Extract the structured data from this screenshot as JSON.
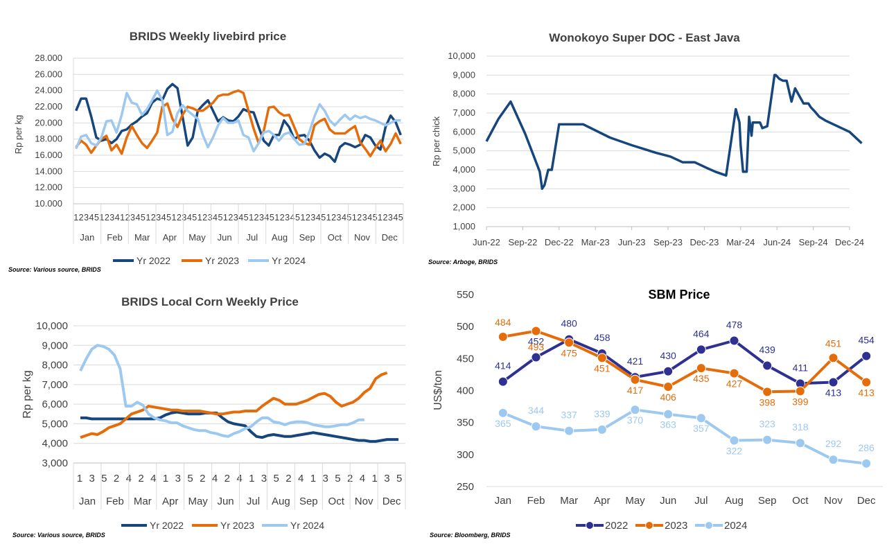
{
  "colors": {
    "y2022": "#17467d",
    "y2023": "#e46c0a",
    "y2024": "#9dc8ef",
    "grid": "#d9d9d9",
    "sbm2022": "#2e3192",
    "sbm2023": "#e46c0a",
    "sbm2024": "#9dc8ef"
  },
  "chart_data": [
    {
      "type": "line",
      "title": "BRIDS Weekly livebird price",
      "ylabel": "Rp per kg",
      "ylim": [
        10000,
        28000
      ],
      "yticks": [
        "10.000",
        "12.000",
        "14.000",
        "16.000",
        "18.000",
        "20.000",
        "22.000",
        "24.000",
        "26.000",
        "28.000"
      ],
      "week_labels": [
        "1",
        "2",
        "3",
        "4",
        "5",
        "1",
        "2",
        "3",
        "4",
        "1",
        "2",
        "3",
        "4",
        "5",
        "1",
        "2",
        "3",
        "4",
        "5",
        "1",
        "2",
        "3",
        "4",
        "5",
        "1",
        "2",
        "3",
        "4",
        "5",
        "1",
        "2",
        "3",
        "4",
        "5",
        "1",
        "2",
        "3",
        "4",
        "5",
        "1",
        "2",
        "3",
        "4",
        "5",
        "1",
        "2",
        "3",
        "4",
        "5",
        "1",
        "2",
        "3",
        "4",
        "5",
        "1",
        "2",
        "3",
        "4",
        "5",
        "1",
        "2",
        "3",
        "4",
        "5"
      ],
      "months": [
        "Jan",
        "Feb",
        "Mar",
        "Apr",
        "May",
        "Jun",
        "Jul",
        "Aug",
        "Sep",
        "Oct",
        "Nov",
        "Dec"
      ],
      "legend": [
        "Yr 2022",
        "Yr 2023",
        "Yr 2024"
      ],
      "source": "Source: Various source, BRIDS",
      "series": [
        {
          "name": "Yr 2022",
          "values": [
            21500,
            23000,
            23000,
            20800,
            18200,
            17800,
            18000,
            17500,
            18000,
            19000,
            19200,
            19800,
            20200,
            20800,
            21200,
            22500,
            23000,
            22800,
            24200,
            24800,
            24300,
            20800,
            17200,
            18200,
            21500,
            22200,
            22800,
            21500,
            20200,
            20700,
            20300,
            20200,
            20800,
            21700,
            21400,
            21300,
            19500,
            17800,
            17200,
            18500,
            18500,
            20300,
            19500,
            18000,
            18400,
            18500,
            17800,
            16600,
            15700,
            16200,
            15900,
            15200,
            17000,
            17500,
            17300,
            17000,
            17300,
            18500,
            18200,
            17200,
            16700,
            19500,
            20900,
            20100,
            18500
          ]
        },
        {
          "name": "Yr 2023",
          "values": [
            17000,
            17800,
            17300,
            16300,
            17200,
            18000,
            18400,
            16600,
            17300,
            16200,
            18200,
            19600,
            18500,
            17500,
            16900,
            17800,
            18800,
            22000,
            22400,
            20500,
            19500,
            21000,
            22000,
            21800,
            21500,
            21500,
            22000,
            22500,
            23300,
            23500,
            23500,
            23800,
            24000,
            23700,
            21500,
            19300,
            17500,
            19000,
            21900,
            22000,
            21300,
            20900,
            21000,
            19500,
            18000,
            17500,
            17300,
            19700,
            20200,
            20500,
            19200,
            18700,
            18700,
            18700,
            19200,
            19600,
            17600,
            16800,
            15900,
            16900,
            17800,
            16500,
            17400,
            18700,
            17400
          ]
        },
        {
          "name": "Yr 2024",
          "values": [
            16800,
            18300,
            18500,
            17500,
            17200,
            18200,
            20200,
            20300,
            18800,
            21000,
            23700,
            22500,
            22300,
            21000,
            21700,
            22800,
            24000,
            22800,
            18500,
            18900,
            21200,
            22200,
            21500,
            21000,
            20500,
            18500,
            17000,
            18200,
            19700,
            20600,
            20000,
            20000,
            20300,
            18500,
            18200,
            16500,
            17500,
            18800,
            19000,
            18500,
            17800,
            18600,
            18800,
            18000,
            17300,
            17400,
            18900,
            20800,
            22300,
            21500,
            20300,
            19700,
            20400,
            21000,
            20400,
            20900,
            20600,
            20800,
            20500,
            20300,
            20000,
            19700,
            20000,
            20300,
            20300
          ]
        }
      ]
    },
    {
      "type": "line",
      "title": "Wonokoyo Super DOC - East Java",
      "ylabel": "Rp per chick",
      "ylim": [
        1000,
        10000
      ],
      "yticks": [
        "1,000",
        "2,000",
        "3,000",
        "4,000",
        "5,000",
        "6,000",
        "7,000",
        "8,000",
        "9,000",
        "10,000"
      ],
      "xticks": [
        "Jun-22",
        "Sep-22",
        "Dec-22",
        "Mar-23",
        "Jun-23",
        "Sep-23",
        "Dec-23",
        "Mar-24",
        "Jun-24",
        "Sep-24",
        "Dec-24"
      ],
      "source": "Source: Arboge, BRIDS",
      "x_months": [
        0,
        1.0,
        2.0,
        3.2,
        4.4,
        4.6,
        4.8,
        5.1,
        5.4,
        6.0,
        6.1,
        6.3,
        7.1,
        7.5,
        8.0,
        10.2,
        12.0,
        13.0,
        14.0,
        15.2,
        16.2,
        17.2,
        18.2,
        18.9,
        19.8,
        20.6,
        20.9,
        21.0,
        21.2,
        21.5,
        21.7,
        21.9,
        22.0,
        22.1,
        22.6,
        22.8,
        23.2,
        23.8,
        23.9,
        24.2,
        24.5,
        24.8,
        25.2,
        25.5,
        26.2,
        26.6,
        26.8,
        27.1,
        27.5,
        28.0,
        30.0,
        31.0
      ],
      "values": [
        5500,
        6700,
        7600,
        5900,
        3900,
        3000,
        3200,
        4000,
        4000,
        6400,
        6400,
        6400,
        6400,
        6400,
        6400,
        5700,
        5300,
        5100,
        4900,
        4700,
        4400,
        4400,
        4100,
        3900,
        3700,
        7200,
        6500,
        5300,
        3900,
        3900,
        6800,
        5800,
        6500,
        6500,
        6500,
        6200,
        6300,
        9000,
        9000,
        8800,
        8700,
        8700,
        7600,
        8300,
        7500,
        7500,
        7300,
        7100,
        6800,
        6600,
        6000,
        5400
      ]
    },
    {
      "type": "line",
      "title": "BRIDS Local Corn Weekly Price",
      "ylabel": "Rp per kg",
      "ylim": [
        3000,
        10000
      ],
      "yticks": [
        "3,000",
        "4,000",
        "5,000",
        "6,000",
        "7,000",
        "8,000",
        "9,000",
        "10,000"
      ],
      "week_labels": [
        "1",
        "3",
        "5",
        "2",
        "4",
        "2",
        "4",
        "1",
        "3",
        "5",
        "2",
        "4",
        "2",
        "4",
        "1",
        "3",
        "5",
        "2",
        "4",
        "1",
        "3",
        "5",
        "2",
        "4",
        "1",
        "3",
        "5"
      ],
      "months": [
        "Jan",
        "Feb",
        "Mar",
        "Apr",
        "May",
        "Jun",
        "Jul",
        "Aug",
        "Sep",
        "Oct",
        "Nov",
        "Dec"
      ],
      "legend": [
        "Yr 2022",
        "Yr 2023",
        "Yr 2024"
      ],
      "source": "Source: Various source, BRIDS",
      "series": [
        {
          "name": "Yr 2022",
          "values": [
            5300,
            5300,
            5250,
            5250,
            5250,
            5250,
            5250,
            5250,
            5250,
            5250,
            5250,
            5250,
            5250,
            5250,
            5300,
            5450,
            5550,
            5600,
            5550,
            5500,
            5500,
            5500,
            5550,
            5550,
            5550,
            5300,
            5100,
            5000,
            4950,
            4900,
            4600,
            4350,
            4300,
            4400,
            4450,
            4400,
            4350,
            4350,
            4400,
            4450,
            4500,
            4550,
            4500,
            4450,
            4400,
            4350,
            4300,
            4250,
            4200,
            4150,
            4150,
            4100,
            4100,
            4150,
            4200,
            4200,
            4200
          ]
        },
        {
          "name": "Yr 2023",
          "values": [
            4300,
            4400,
            4500,
            4450,
            4600,
            4800,
            4900,
            5000,
            5250,
            5500,
            5600,
            5700,
            5900,
            5850,
            5800,
            5750,
            5700,
            5700,
            5650,
            5650,
            5650,
            5650,
            5600,
            5550,
            5500,
            5500,
            5550,
            5600,
            5600,
            5650,
            5650,
            5650,
            5900,
            6100,
            6300,
            6200,
            6000,
            6000,
            6000,
            6100,
            6200,
            6350,
            6500,
            6550,
            6400,
            6100,
            5900,
            6000,
            6100,
            6300,
            6600,
            6800,
            7300,
            7500,
            7600
          ]
        },
        {
          "name": "Yr 2024",
          "values": [
            7700,
            8300,
            8800,
            9000,
            8950,
            8800,
            8500,
            7800,
            5900,
            5900,
            6100,
            5950,
            5500,
            5300,
            5200,
            5150,
            5050,
            5050,
            4900,
            4800,
            4700,
            4650,
            4650,
            4550,
            4500,
            4400,
            4350,
            4500,
            4600,
            4750,
            4850,
            5100,
            5300,
            5300,
            5100,
            5050,
            4950,
            5050,
            5100,
            5100,
            5050,
            4950,
            4900,
            4850,
            4850,
            4900,
            4950,
            4950,
            5050,
            5200,
            5200
          ]
        }
      ]
    },
    {
      "type": "line",
      "title": "SBM Price",
      "ylabel": "US$/ton",
      "ylim": [
        250,
        550
      ],
      "yticks": [
        "250",
        "300",
        "350",
        "400",
        "450",
        "500",
        "550"
      ],
      "categories": [
        "Jan",
        "Feb",
        "Mar",
        "Apr",
        "May",
        "Jun",
        "Jul",
        "Aug",
        "Sep",
        "Oct",
        "Nov",
        "Dec"
      ],
      "legend": [
        "2022",
        "2023",
        "2024"
      ],
      "source": "Source: Bloomberg, BRIDS",
      "series": [
        {
          "name": "2022",
          "values": [
            414,
            452,
            480,
            458,
            421,
            430,
            464,
            478,
            439,
            411,
            413,
            454
          ]
        },
        {
          "name": "2023",
          "values": [
            484,
            493,
            475,
            451,
            417,
            406,
            435,
            427,
            398,
            399,
            451,
            413
          ]
        },
        {
          "name": "2024",
          "values": [
            365,
            344,
            337,
            339,
            370,
            363,
            357,
            322,
            323,
            318,
            292,
            286
          ]
        }
      ]
    }
  ]
}
